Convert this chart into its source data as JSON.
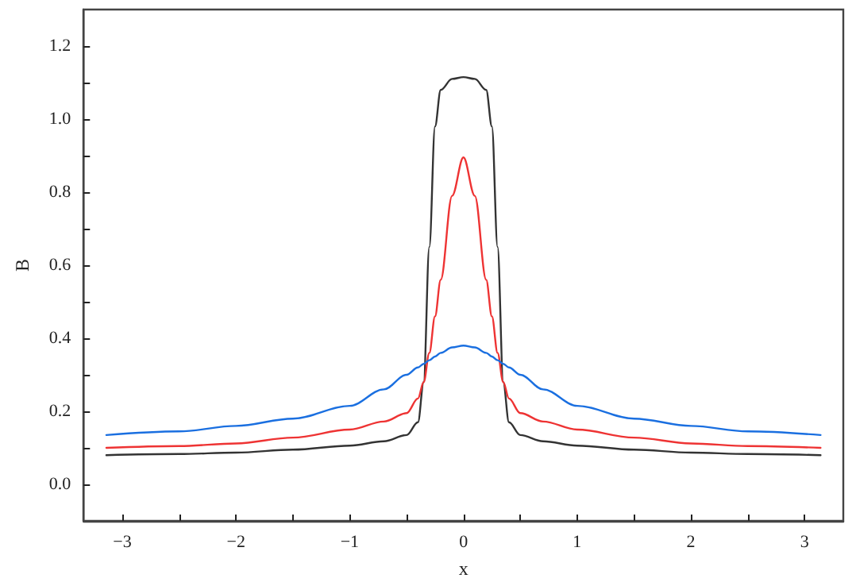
{
  "chart_data": {
    "type": "line",
    "xlabel": "x",
    "ylabel": "B",
    "x": [
      -3.14,
      -2.5,
      -2,
      -1.5,
      -1,
      -0.7,
      -0.5,
      -0.4,
      -0.35,
      -0.3,
      -0.25,
      -0.2,
      -0.1,
      0,
      0.1,
      0.2,
      0.25,
      0.3,
      0.35,
      0.4,
      0.5,
      0.7,
      1,
      1.5,
      2,
      2.5,
      3.14
    ],
    "series": [
      {
        "color": "#333333",
        "values": [
          0.08,
          0.083,
          0.087,
          0.095,
          0.106,
          0.118,
          0.135,
          0.17,
          0.28,
          0.65,
          0.98,
          1.08,
          1.11,
          1.115,
          1.11,
          1.08,
          0.98,
          0.65,
          0.28,
          0.17,
          0.135,
          0.118,
          0.106,
          0.095,
          0.087,
          0.083,
          0.08
        ]
      },
      {
        "color": "#ee3333",
        "values": [
          0.1,
          0.105,
          0.112,
          0.128,
          0.15,
          0.172,
          0.195,
          0.235,
          0.28,
          0.36,
          0.46,
          0.56,
          0.79,
          0.895,
          0.79,
          0.56,
          0.46,
          0.36,
          0.28,
          0.235,
          0.195,
          0.172,
          0.15,
          0.128,
          0.112,
          0.105,
          0.1
        ]
      },
      {
        "color": "#1a6fe0",
        "values": [
          0.135,
          0.145,
          0.16,
          0.18,
          0.215,
          0.26,
          0.3,
          0.32,
          0.33,
          0.34,
          0.35,
          0.36,
          0.375,
          0.38,
          0.375,
          0.36,
          0.35,
          0.34,
          0.33,
          0.32,
          0.3,
          0.26,
          0.215,
          0.18,
          0.16,
          0.145,
          0.135
        ]
      }
    ],
    "xlim": [
      -3.34,
      3.34
    ],
    "ylim": [
      -0.1,
      1.3
    ],
    "xticks": [
      {
        "value": -3,
        "label": "−3"
      },
      {
        "value": -2.5,
        "label": null
      },
      {
        "value": -2,
        "label": "−2"
      },
      {
        "value": -1.5,
        "label": null
      },
      {
        "value": -1,
        "label": "−1"
      },
      {
        "value": -0.5,
        "label": null
      },
      0,
      {
        "value": 0.5,
        "label": null
      },
      1,
      {
        "value": 1.5,
        "label": null
      },
      2,
      {
        "value": 2.5,
        "label": null
      },
      3
    ],
    "yticks": [
      {
        "value": 0,
        "label": "0.0"
      },
      {
        "value": 0.1,
        "label": null
      },
      {
        "value": 0.2,
        "label": "0.2"
      },
      {
        "value": 0.3,
        "label": null
      },
      {
        "value": 0.4,
        "label": "0.4"
      },
      {
        "value": 0.5,
        "label": null
      },
      {
        "value": 0.6,
        "label": "0.6"
      },
      {
        "value": 0.7,
        "label": null
      },
      {
        "value": 0.8,
        "label": "0.8"
      },
      {
        "value": 0.9,
        "label": null
      },
      {
        "value": 1,
        "label": "1.0"
      },
      {
        "value": 1.1,
        "label": null
      },
      {
        "value": 1.2,
        "label": "1.2"
      }
    ],
    "grid": false,
    "marker": "none",
    "line_style": "solid"
  }
}
